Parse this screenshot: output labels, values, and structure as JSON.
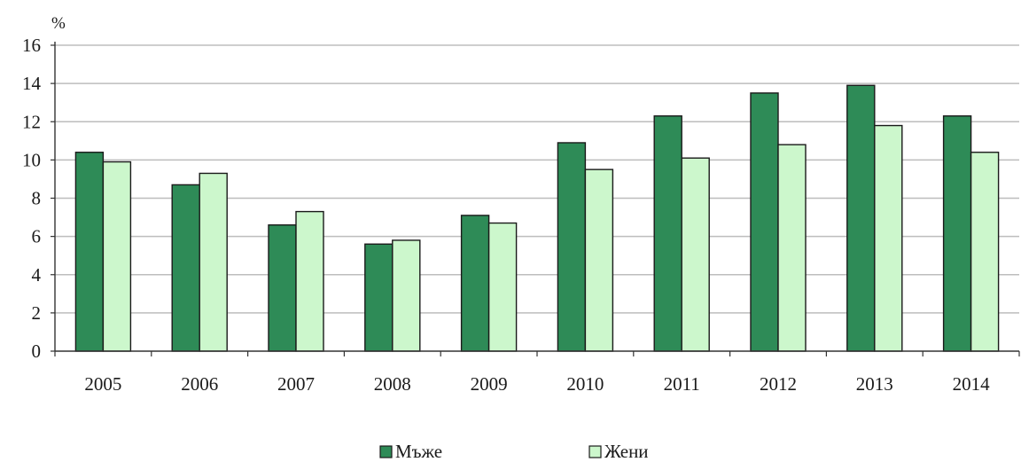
{
  "chart_data": {
    "type": "bar",
    "ylabel": "%",
    "categories": [
      "2005",
      "2006",
      "2007",
      "2008",
      "2009",
      "2010",
      "2011",
      "2012",
      "2013",
      "2014"
    ],
    "series": [
      {
        "name": "Мъже",
        "color": "#2e8b57",
        "values": [
          10.4,
          8.7,
          6.6,
          5.6,
          7.1,
          10.9,
          12.3,
          13.5,
          13.9,
          12.3
        ]
      },
      {
        "name": "Жени",
        "color": "#ccf7cc",
        "values": [
          9.9,
          9.3,
          7.3,
          5.8,
          6.7,
          9.5,
          10.1,
          10.8,
          11.8,
          10.4
        ]
      }
    ],
    "ylim": [
      0,
      16
    ],
    "yticks": [
      "0",
      "2",
      "4",
      "6",
      "8",
      "10",
      "12",
      "14",
      "16"
    ],
    "grid": true,
    "legend_position": "bottom"
  }
}
